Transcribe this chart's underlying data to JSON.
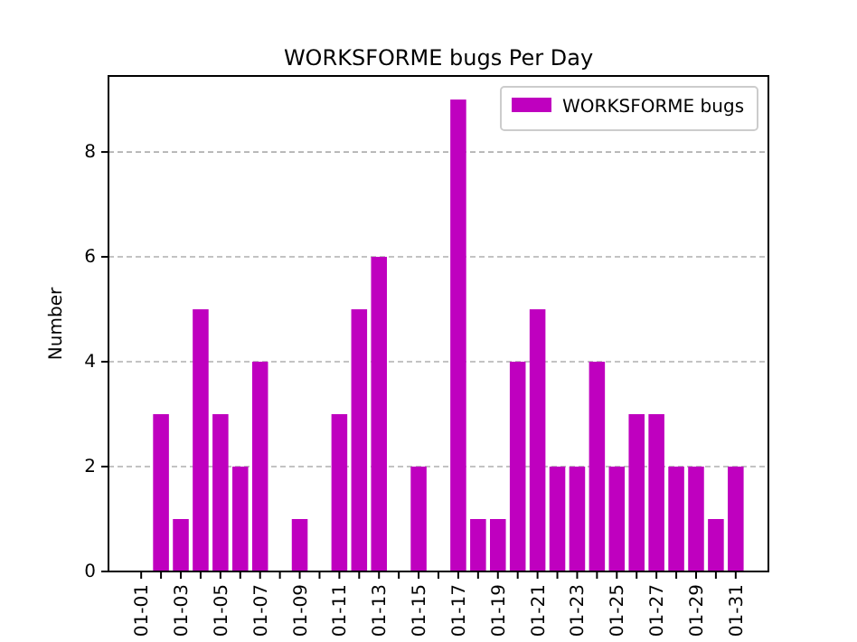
{
  "chart_data": {
    "type": "bar",
    "title": "WORKSFORME bugs Per Day",
    "ylabel": "Number",
    "categories": [
      "01-01",
      null,
      "01-03",
      null,
      "01-05",
      null,
      "01-07",
      null,
      "01-09",
      null,
      "01-11",
      null,
      "01-13",
      null,
      "01-15",
      null,
      "01-17",
      null,
      "01-19",
      null,
      "01-21",
      null,
      "01-23",
      null,
      "01-25",
      null,
      "01-27",
      null,
      "01-29",
      null,
      "01-31"
    ],
    "series": [
      {
        "name": "WORKSFORME bugs",
        "color": "#bf00bf",
        "values": [
          0,
          3,
          1,
          5,
          3,
          2,
          4,
          0,
          1,
          0,
          3,
          5,
          6,
          0,
          2,
          0,
          9,
          1,
          1,
          4,
          5,
          2,
          2,
          4,
          2,
          3,
          3,
          2,
          2,
          1,
          2
        ]
      }
    ],
    "ylim": [
      0,
      9.45
    ],
    "yticks": [
      0,
      2,
      4,
      6,
      8
    ],
    "grid": "y",
    "legend": "top right"
  }
}
